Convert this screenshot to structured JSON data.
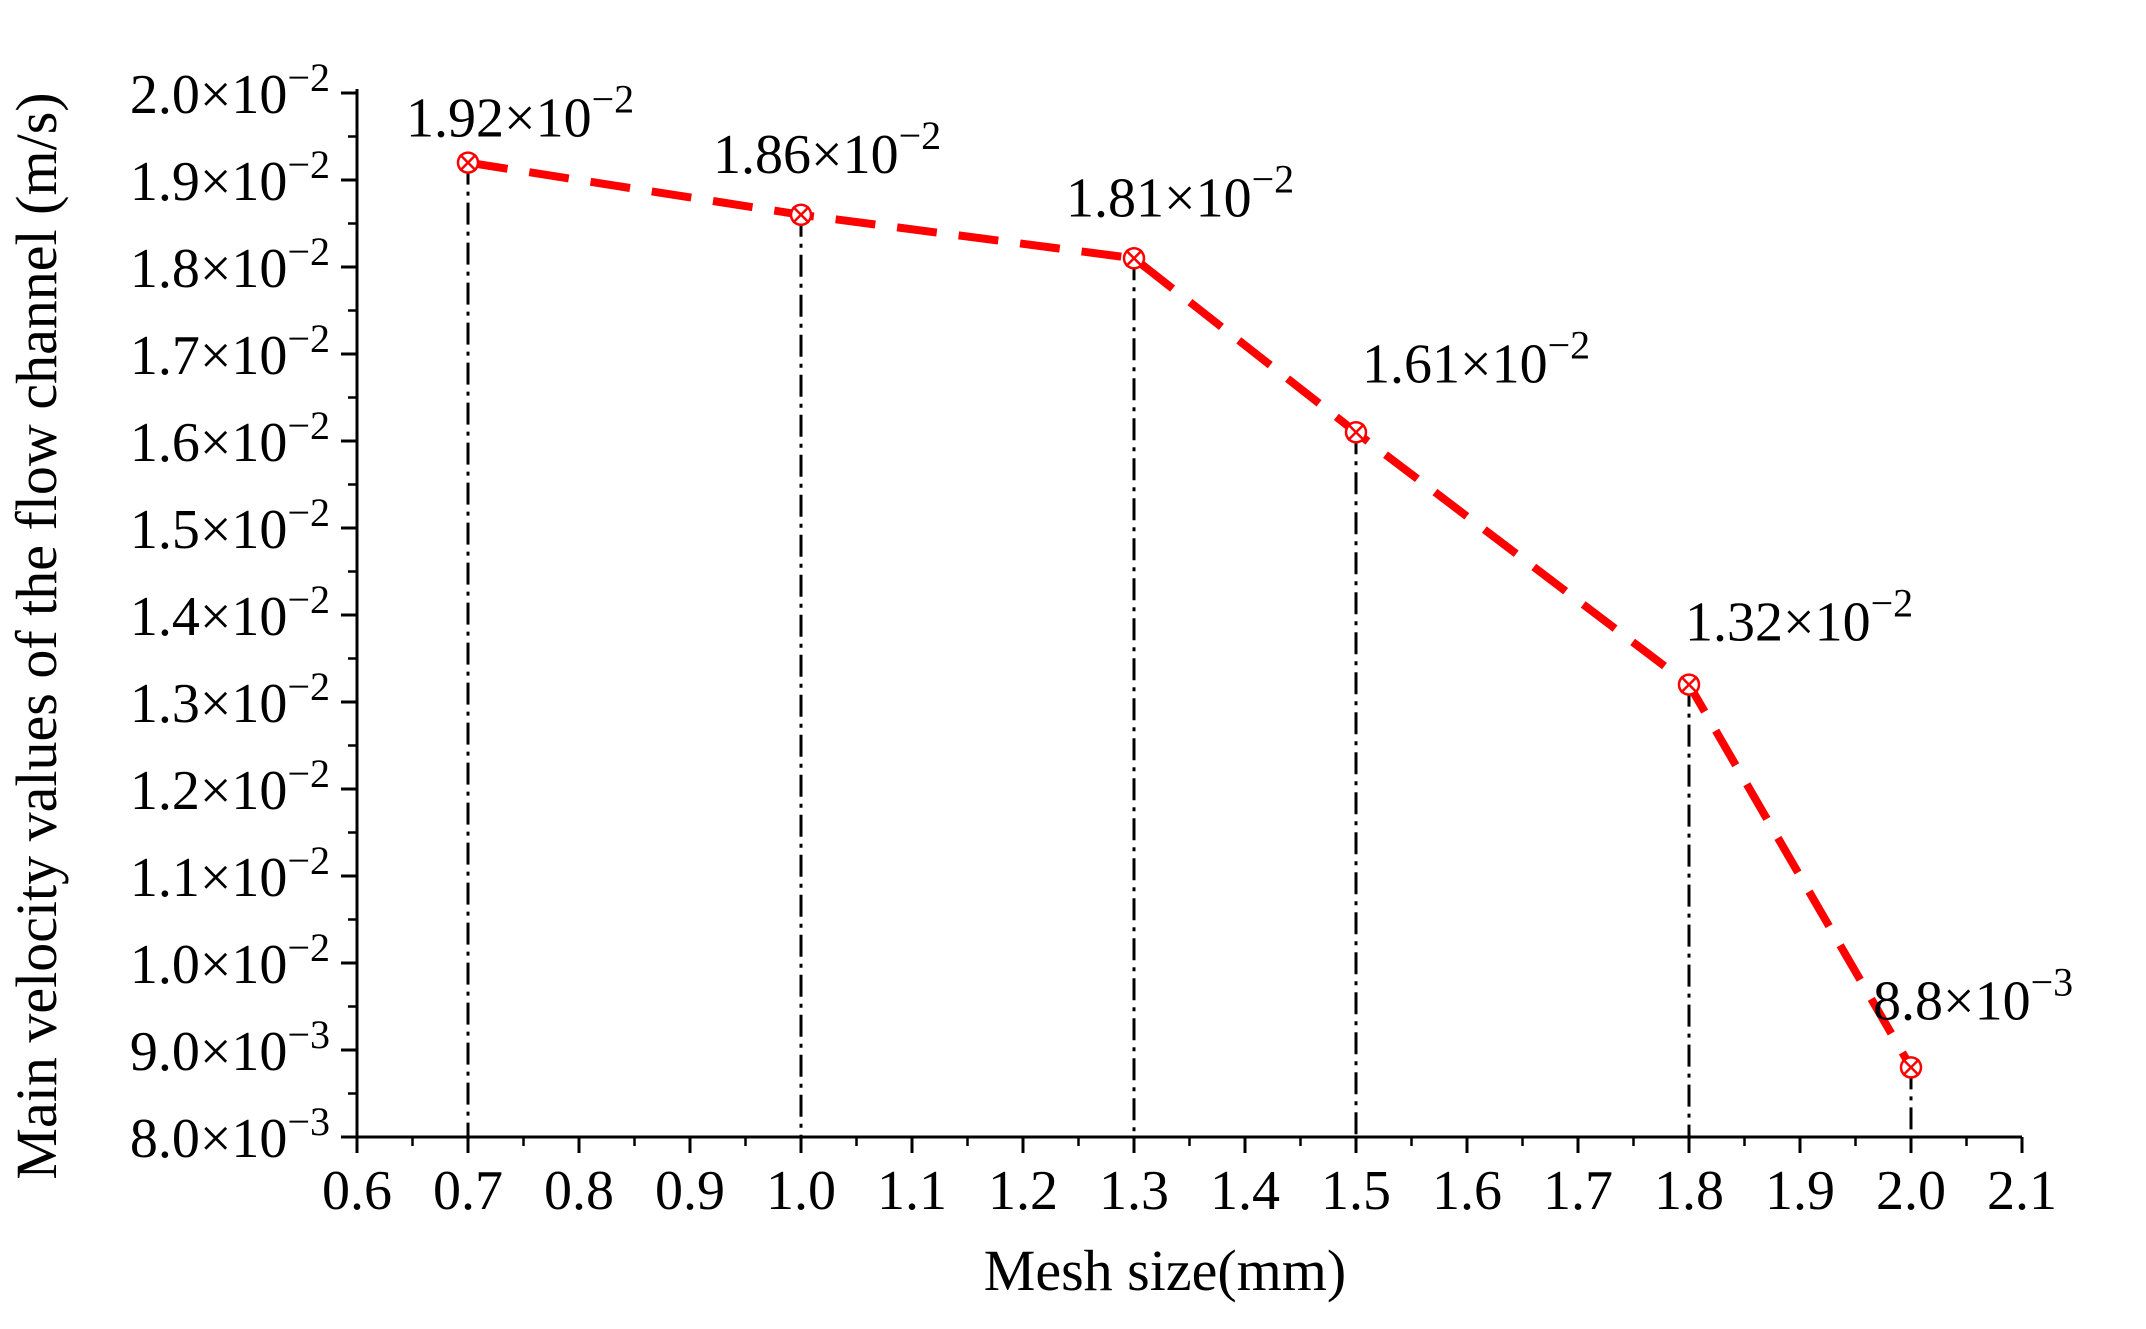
{
  "chart_data": {
    "type": "line",
    "xlabel": "Mesh size(mm)",
    "ylabel": "Main velocity values of the flow channel (m/s)",
    "xlim": [
      0.6,
      2.1
    ],
    "ylim": [
      0.008,
      0.02
    ],
    "x_ticks": [
      "0.6",
      "0.7",
      "0.8",
      "0.9",
      "1.0",
      "1.1",
      "1.2",
      "1.3",
      "1.4",
      "1.5",
      "1.6",
      "1.7",
      "1.8",
      "1.9",
      "2.0",
      "2.1"
    ],
    "y_ticks": [
      {
        "value": 0.008,
        "mantissa": "8.0×10",
        "exp": "−3"
      },
      {
        "value": 0.009,
        "mantissa": "9.0×10",
        "exp": "−3"
      },
      {
        "value": 0.01,
        "mantissa": "1.0×10",
        "exp": "−2"
      },
      {
        "value": 0.011,
        "mantissa": "1.1×10",
        "exp": "−2"
      },
      {
        "value": 0.012,
        "mantissa": "1.2×10",
        "exp": "−2"
      },
      {
        "value": 0.013,
        "mantissa": "1.3×10",
        "exp": "−2"
      },
      {
        "value": 0.014,
        "mantissa": "1.4×10",
        "exp": "−2"
      },
      {
        "value": 0.015,
        "mantissa": "1.5×10",
        "exp": "−2"
      },
      {
        "value": 0.016,
        "mantissa": "1.6×10",
        "exp": "−2"
      },
      {
        "value": 0.017,
        "mantissa": "1.7×10",
        "exp": "−2"
      },
      {
        "value": 0.018,
        "mantissa": "1.8×10",
        "exp": "−2"
      },
      {
        "value": 0.019,
        "mantissa": "1.9×10",
        "exp": "−2"
      },
      {
        "value": 0.02,
        "mantissa": "2.0×10",
        "exp": "−2"
      }
    ],
    "grid": false,
    "series": [
      {
        "color": "#ff0000",
        "line_style": "dashed",
        "marker": "circle-x",
        "drop_lines": true,
        "points": [
          {
            "x": 0.7,
            "y": 0.0192,
            "label_mantissa": "1.92×10",
            "label_exp": "−2"
          },
          {
            "x": 1.0,
            "y": 0.0186,
            "label_mantissa": "1.86×10",
            "label_exp": "−2"
          },
          {
            "x": 1.3,
            "y": 0.0181,
            "label_mantissa": "1.81×10",
            "label_exp": "−2"
          },
          {
            "x": 1.5,
            "y": 0.0161,
            "label_mantissa": "1.61×10",
            "label_exp": "−2"
          },
          {
            "x": 1.8,
            "y": 0.0132,
            "label_mantissa": "1.32×10",
            "label_exp": "−2"
          },
          {
            "x": 2.0,
            "y": 0.0088,
            "label_mantissa": "8.8×10",
            "label_exp": "−3"
          }
        ]
      }
    ]
  }
}
